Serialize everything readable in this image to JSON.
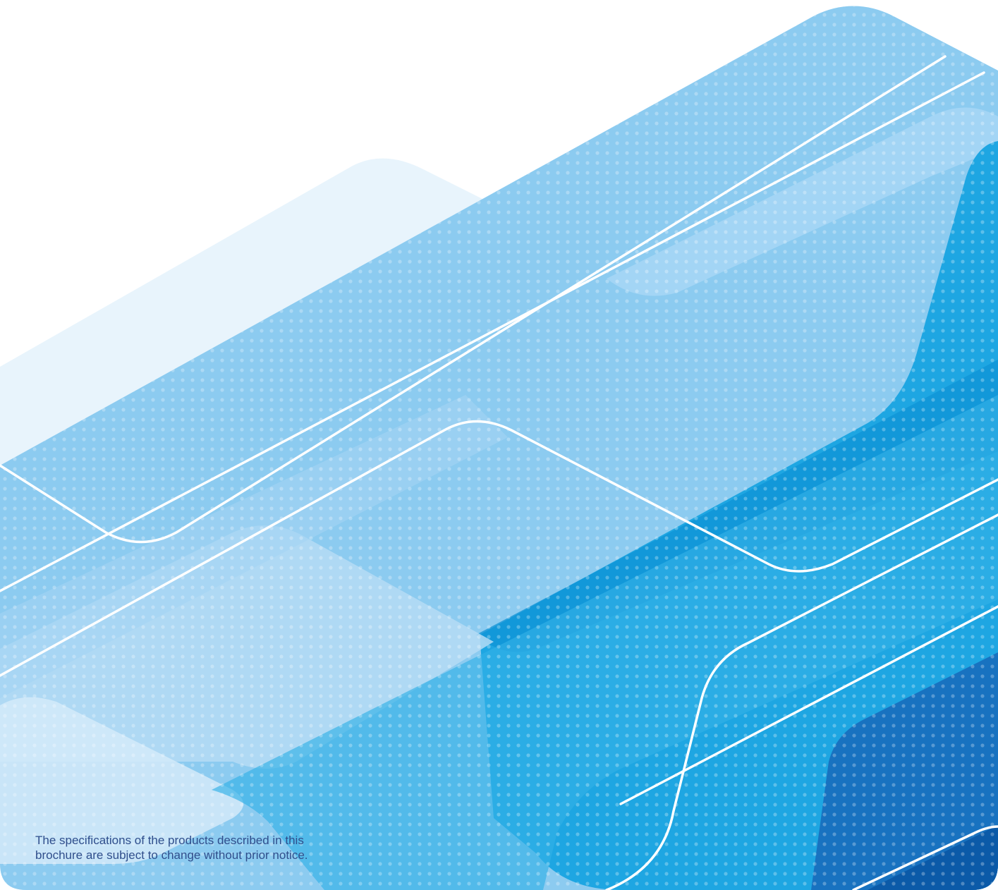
{
  "back_cover": {
    "disclaimer_lines": [
      "The specifications of the products described in this",
      "brochure are subject to change without prior notice."
    ]
  },
  "colors": {
    "page_background": "#ffffff",
    "pale_band": "#e8f4fc",
    "light_band": "#b5dcf5",
    "main_band": "#8ccbf0",
    "bright_band": "#1ea6e2",
    "mid_band": "#0f93d6",
    "deep_band": "#1872c0",
    "line_color": "#ffffff",
    "disclaimer_text": "#2f4e8c"
  }
}
